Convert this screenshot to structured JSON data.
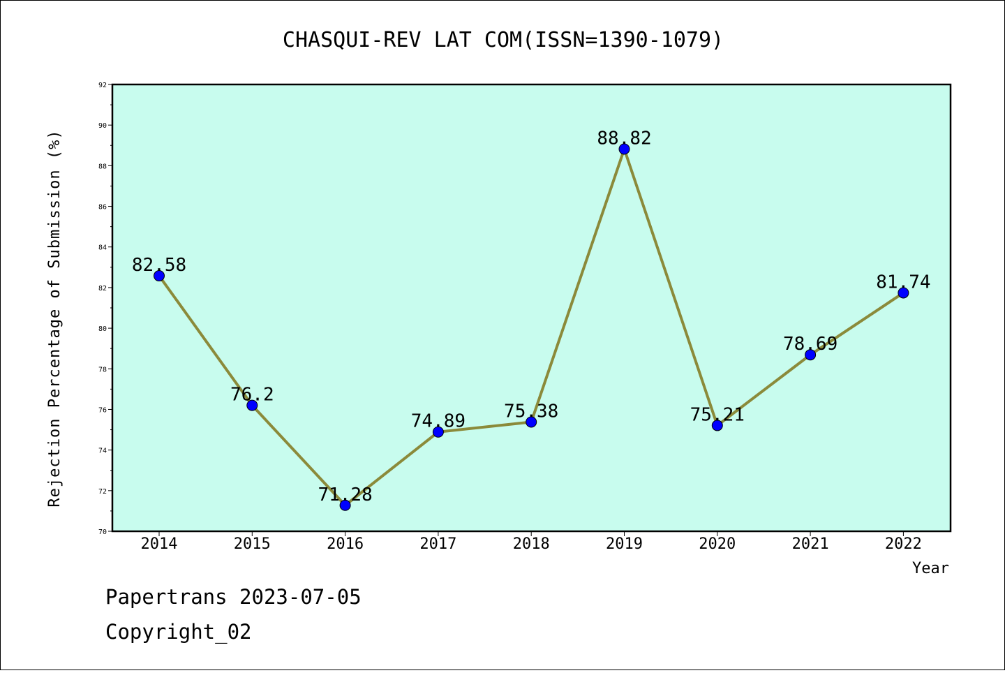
{
  "chart_data": {
    "type": "line",
    "title": "CHASQUI-REV LAT COM(ISSN=1390-1079)",
    "xlabel": "Year",
    "ylabel": "Rejection Percentage of Submission (%)",
    "categories": [
      "2014",
      "2015",
      "2016",
      "2017",
      "2018",
      "2019",
      "2020",
      "2021",
      "2022"
    ],
    "values": [
      82.58,
      76.2,
      71.28,
      74.89,
      75.38,
      88.82,
      75.21,
      78.69,
      81.74
    ],
    "data_labels": [
      "82.58",
      "76.2",
      "71.28",
      "74.89",
      "75.38",
      "88.82",
      "75.21",
      "78.69",
      "81.74"
    ],
    "ylim": [
      70,
      92
    ],
    "yticks": [
      "70",
      "72",
      "74",
      "76",
      "78",
      "80",
      "82",
      "84",
      "86",
      "88",
      "90",
      "92"
    ],
    "grid": false,
    "legend": "none",
    "colors": {
      "plot_background": "#c8fcee",
      "line": "#8b8a3a",
      "marker": "#0000ff"
    }
  },
  "footer": {
    "line1": "Papertrans 2023-07-05",
    "line2": "Copyright_02"
  }
}
